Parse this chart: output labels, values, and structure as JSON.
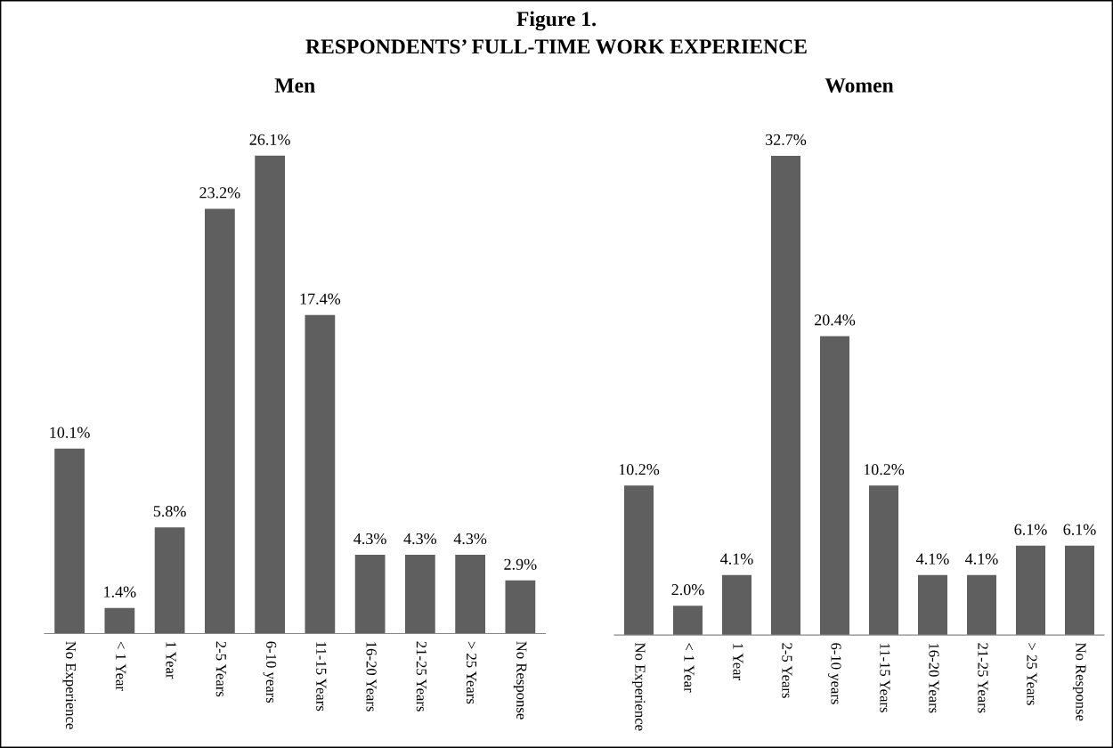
{
  "chart_data": [
    {
      "type": "bar",
      "title": "Men",
      "annotations": [
        "Figure 1.",
        "RESPONDENTS’ FULL-TIME WORK EXPERIENCE"
      ],
      "categories": [
        "No Experience",
        "< 1 Year",
        "1 Year",
        "2-5 Years",
        "6-10 years",
        "11-15 Years",
        "16-20 Years",
        "21-25 Years",
        "> 25 Years",
        "No Response"
      ],
      "values": [
        10.1,
        1.4,
        5.8,
        23.2,
        26.1,
        17.4,
        4.3,
        4.3,
        4.3,
        2.9
      ],
      "value_labels": [
        "10.1%",
        "1.4%",
        "5.8%",
        "23.2%",
        "26.1%",
        "17.4%",
        "4.3%",
        "4.3%",
        "4.3%",
        "2.9%"
      ],
      "color": "#5f5f5f",
      "grid": false,
      "legend": false
    },
    {
      "type": "bar",
      "title": "Women",
      "categories": [
        "No Experience",
        "< 1 Year",
        "1 Year",
        "2-5 Years",
        "6-10 years",
        "11-15 Years",
        "16-20 Years",
        "21-25 Years",
        "> 25 Years",
        "No Response"
      ],
      "values": [
        10.2,
        2.0,
        4.1,
        32.7,
        20.4,
        10.2,
        4.1,
        4.1,
        6.1,
        6.1
      ],
      "value_labels": [
        "10.2%",
        "2.0%",
        "4.1%",
        "32.7%",
        "20.4%",
        "10.2%",
        "4.1%",
        "4.1%",
        "6.1%",
        "6.1%"
      ],
      "color": "#5f5f5f",
      "grid": false,
      "legend": false
    }
  ]
}
